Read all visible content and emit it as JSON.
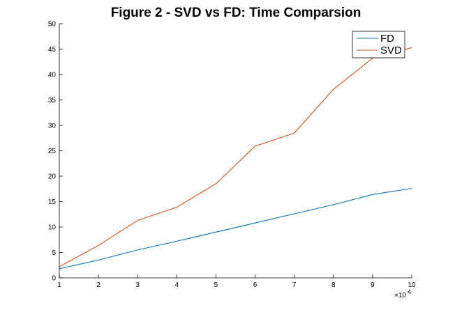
{
  "chart_data": {
    "type": "line",
    "title": "Figure 2 - SVD vs FD: Time Comparsion",
    "xlabel": "",
    "ylabel": "",
    "x": [
      1,
      2,
      3,
      4,
      5,
      6,
      7,
      8,
      9,
      10
    ],
    "x_multiplier_label": "×10",
    "x_multiplier_exponent": "4",
    "xlim": [
      1,
      10
    ],
    "ylim": [
      0,
      50
    ],
    "xticks": [
      "1",
      "2",
      "3",
      "4",
      "5",
      "6",
      "7",
      "8",
      "9",
      "10"
    ],
    "yticks": [
      "0",
      "5",
      "10",
      "15",
      "20",
      "25",
      "30",
      "35",
      "40",
      "45",
      "50"
    ],
    "grid": false,
    "legend_position": "top-right",
    "series": [
      {
        "name": "FD",
        "color": "#0072bd",
        "values": [
          1.8,
          3.5,
          5.5,
          7.2,
          9.0,
          10.8,
          12.6,
          14.4,
          16.4,
          17.6
        ]
      },
      {
        "name": "SVD",
        "color": "#d95319",
        "values": [
          2.2,
          6.4,
          11.3,
          13.9,
          18.5,
          25.9,
          28.5,
          37.1,
          43.2,
          45.3
        ]
      }
    ]
  }
}
